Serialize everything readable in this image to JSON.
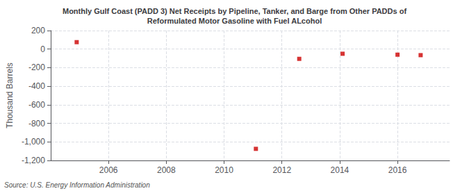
{
  "chart_data": {
    "type": "scatter",
    "title": "Monthly Gulf Coast (PADD 3) Net Receipts by Pipeline, Tanker, and Barge from Other PADDs of\nReformulated Motor Gasoline with Fuel ALcohol",
    "ylabel": "Thousand Barrels",
    "annotation": "Source: U.S. Energy Information Administration",
    "x": [
      2004.9,
      2011.1,
      2012.6,
      2014.1,
      2016.0,
      2016.8
    ],
    "values": [
      75,
      -1075,
      -105,
      -50,
      -60,
      -65
    ],
    "color": "#cc0000",
    "marker": "square",
    "xlim": [
      2004.0,
      2017.8
    ],
    "ylim": [
      -1200,
      200
    ],
    "xticks": [
      2006,
      2008,
      2010,
      2012,
      2014,
      2016
    ],
    "yticks": [
      200,
      0,
      -200,
      -400,
      -600,
      -800,
      {
        "value": -1000,
        "label": "-1,000"
      },
      {
        "value": -1200,
        "label": "-1,200"
      }
    ],
    "grid": true
  }
}
